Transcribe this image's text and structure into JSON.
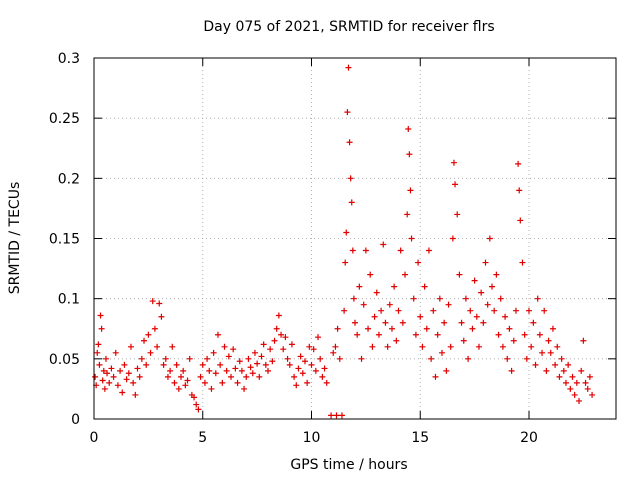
{
  "chart_data": {
    "type": "scatter",
    "title": "Day 075 of 2021, SRMTID for receiver flrs",
    "xlabel": "GPS time / hours",
    "ylabel": "SRMTID / TECUs",
    "xlim": [
      0,
      24
    ],
    "ylim": [
      0,
      0.3
    ],
    "x_ticks": [
      0,
      5,
      10,
      15,
      20
    ],
    "y_ticks": [
      0,
      0.05,
      0.1,
      0.15,
      0.2,
      0.25,
      0.3
    ],
    "grid": true,
    "marker": "+",
    "color": "#e00000",
    "series": [
      {
        "name": "",
        "points": [
          [
            0.05,
            0.035
          ],
          [
            0.1,
            0.028
          ],
          [
            0.15,
            0.055
          ],
          [
            0.2,
            0.062
          ],
          [
            0.25,
            0.045
          ],
          [
            0.3,
            0.086
          ],
          [
            0.35,
            0.075
          ],
          [
            0.4,
            0.032
          ],
          [
            0.45,
            0.04
          ],
          [
            0.5,
            0.025
          ],
          [
            0.55,
            0.05
          ],
          [
            0.6,
            0.038
          ],
          [
            0.7,
            0.03
          ],
          [
            0.8,
            0.042
          ],
          [
            0.9,
            0.035
          ],
          [
            1.0,
            0.055
          ],
          [
            1.1,
            0.028
          ],
          [
            1.2,
            0.04
          ],
          [
            1.3,
            0.022
          ],
          [
            1.4,
            0.045
          ],
          [
            1.5,
            0.033
          ],
          [
            1.6,
            0.038
          ],
          [
            1.7,
            0.06
          ],
          [
            1.8,
            0.03
          ],
          [
            1.9,
            0.02
          ],
          [
            2.0,
            0.042
          ],
          [
            2.1,
            0.035
          ],
          [
            2.2,
            0.05
          ],
          [
            2.3,
            0.065
          ],
          [
            2.4,
            0.045
          ],
          [
            2.5,
            0.07
          ],
          [
            2.6,
            0.055
          ],
          [
            2.7,
            0.098
          ],
          [
            2.8,
            0.075
          ],
          [
            2.9,
            0.06
          ],
          [
            3.0,
            0.096
          ],
          [
            3.1,
            0.085
          ],
          [
            3.2,
            0.045
          ],
          [
            3.3,
            0.05
          ],
          [
            3.4,
            0.035
          ],
          [
            3.5,
            0.04
          ],
          [
            3.6,
            0.06
          ],
          [
            3.7,
            0.03
          ],
          [
            3.8,
            0.045
          ],
          [
            3.9,
            0.025
          ],
          [
            4.0,
            0.035
          ],
          [
            4.1,
            0.04
          ],
          [
            4.2,
            0.028
          ],
          [
            4.3,
            0.032
          ],
          [
            4.4,
            0.05
          ],
          [
            4.5,
            0.02
          ],
          [
            4.6,
            0.018
          ],
          [
            4.7,
            0.012
          ],
          [
            4.8,
            0.008
          ],
          [
            4.9,
            0.035
          ],
          [
            5.0,
            0.045
          ],
          [
            5.1,
            0.03
          ],
          [
            5.2,
            0.05
          ],
          [
            5.3,
            0.04
          ],
          [
            5.4,
            0.025
          ],
          [
            5.5,
            0.055
          ],
          [
            5.6,
            0.038
          ],
          [
            5.7,
            0.07
          ],
          [
            5.8,
            0.045
          ],
          [
            5.9,
            0.03
          ],
          [
            6.0,
            0.06
          ],
          [
            6.1,
            0.04
          ],
          [
            6.2,
            0.052
          ],
          [
            6.3,
            0.035
          ],
          [
            6.4,
            0.058
          ],
          [
            6.5,
            0.042
          ],
          [
            6.6,
            0.03
          ],
          [
            6.7,
            0.048
          ],
          [
            6.8,
            0.04
          ],
          [
            6.9,
            0.025
          ],
          [
            7.0,
            0.035
          ],
          [
            7.1,
            0.05
          ],
          [
            7.2,
            0.043
          ],
          [
            7.3,
            0.038
          ],
          [
            7.4,
            0.055
          ],
          [
            7.5,
            0.046
          ],
          [
            7.6,
            0.035
          ],
          [
            7.7,
            0.052
          ],
          [
            7.8,
            0.062
          ],
          [
            7.9,
            0.045
          ],
          [
            8.0,
            0.04
          ],
          [
            8.1,
            0.058
          ],
          [
            8.2,
            0.048
          ],
          [
            8.3,
            0.065
          ],
          [
            8.4,
            0.075
          ],
          [
            8.5,
            0.086
          ],
          [
            8.6,
            0.07
          ],
          [
            8.7,
            0.058
          ],
          [
            8.8,
            0.068
          ],
          [
            8.9,
            0.05
          ],
          [
            9.0,
            0.045
          ],
          [
            9.1,
            0.062
          ],
          [
            9.2,
            0.035
          ],
          [
            9.3,
            0.028
          ],
          [
            9.4,
            0.042
          ],
          [
            9.5,
            0.052
          ],
          [
            9.6,
            0.038
          ],
          [
            9.7,
            0.048
          ],
          [
            9.8,
            0.03
          ],
          [
            9.9,
            0.06
          ],
          [
            10.0,
            0.045
          ],
          [
            10.1,
            0.058
          ],
          [
            10.2,
            0.04
          ],
          [
            10.3,
            0.068
          ],
          [
            10.4,
            0.05
          ],
          [
            10.5,
            0.035
          ],
          [
            10.6,
            0.042
          ],
          [
            10.7,
            0.03
          ],
          [
            10.9,
            0.003
          ],
          [
            11.0,
            0.055
          ],
          [
            11.1,
            0.06
          ],
          [
            11.15,
            0.003
          ],
          [
            11.2,
            0.075
          ],
          [
            11.3,
            0.05
          ],
          [
            11.4,
            0.003
          ],
          [
            11.5,
            0.09
          ],
          [
            11.55,
            0.13
          ],
          [
            11.6,
            0.155
          ],
          [
            11.65,
            0.255
          ],
          [
            11.7,
            0.292
          ],
          [
            11.75,
            0.23
          ],
          [
            11.8,
            0.2
          ],
          [
            11.85,
            0.18
          ],
          [
            11.9,
            0.14
          ],
          [
            11.95,
            0.1
          ],
          [
            12.0,
            0.08
          ],
          [
            12.1,
            0.07
          ],
          [
            12.2,
            0.11
          ],
          [
            12.3,
            0.05
          ],
          [
            12.4,
            0.095
          ],
          [
            12.5,
            0.14
          ],
          [
            12.6,
            0.075
          ],
          [
            12.7,
            0.12
          ],
          [
            12.8,
            0.06
          ],
          [
            12.9,
            0.085
          ],
          [
            13.0,
            0.105
          ],
          [
            13.1,
            0.07
          ],
          [
            13.2,
            0.09
          ],
          [
            13.3,
            0.145
          ],
          [
            13.4,
            0.08
          ],
          [
            13.5,
            0.06
          ],
          [
            13.6,
            0.095
          ],
          [
            13.7,
            0.075
          ],
          [
            13.8,
            0.11
          ],
          [
            13.9,
            0.065
          ],
          [
            14.0,
            0.09
          ],
          [
            14.1,
            0.14
          ],
          [
            14.2,
            0.08
          ],
          [
            14.3,
            0.12
          ],
          [
            14.4,
            0.17
          ],
          [
            14.45,
            0.241
          ],
          [
            14.5,
            0.22
          ],
          [
            14.55,
            0.19
          ],
          [
            14.6,
            0.15
          ],
          [
            14.7,
            0.1
          ],
          [
            14.8,
            0.07
          ],
          [
            14.9,
            0.13
          ],
          [
            15.0,
            0.085
          ],
          [
            15.1,
            0.06
          ],
          [
            15.2,
            0.11
          ],
          [
            15.3,
            0.075
          ],
          [
            15.4,
            0.14
          ],
          [
            15.5,
            0.05
          ],
          [
            15.6,
            0.09
          ],
          [
            15.7,
            0.035
          ],
          [
            15.8,
            0.07
          ],
          [
            15.9,
            0.1
          ],
          [
            16.0,
            0.055
          ],
          [
            16.1,
            0.08
          ],
          [
            16.2,
            0.04
          ],
          [
            16.3,
            0.095
          ],
          [
            16.4,
            0.06
          ],
          [
            16.5,
            0.15
          ],
          [
            16.55,
            0.213
          ],
          [
            16.6,
            0.195
          ],
          [
            16.7,
            0.17
          ],
          [
            16.8,
            0.12
          ],
          [
            16.9,
            0.08
          ],
          [
            17.0,
            0.065
          ],
          [
            17.1,
            0.1
          ],
          [
            17.2,
            0.05
          ],
          [
            17.3,
            0.09
          ],
          [
            17.4,
            0.075
          ],
          [
            17.5,
            0.115
          ],
          [
            17.6,
            0.085
          ],
          [
            17.7,
            0.06
          ],
          [
            17.8,
            0.105
          ],
          [
            17.9,
            0.08
          ],
          [
            18.0,
            0.13
          ],
          [
            18.1,
            0.095
          ],
          [
            18.2,
            0.15
          ],
          [
            18.3,
            0.11
          ],
          [
            18.4,
            0.09
          ],
          [
            18.5,
            0.12
          ],
          [
            18.6,
            0.07
          ],
          [
            18.7,
            0.1
          ],
          [
            18.8,
            0.06
          ],
          [
            18.9,
            0.085
          ],
          [
            19.0,
            0.05
          ],
          [
            19.1,
            0.075
          ],
          [
            19.2,
            0.04
          ],
          [
            19.3,
            0.065
          ],
          [
            19.4,
            0.09
          ],
          [
            19.5,
            0.212
          ],
          [
            19.55,
            0.19
          ],
          [
            19.6,
            0.165
          ],
          [
            19.7,
            0.13
          ],
          [
            19.8,
            0.07
          ],
          [
            19.9,
            0.05
          ],
          [
            20.0,
            0.09
          ],
          [
            20.1,
            0.06
          ],
          [
            20.2,
            0.08
          ],
          [
            20.3,
            0.045
          ],
          [
            20.4,
            0.1
          ],
          [
            20.5,
            0.07
          ],
          [
            20.6,
            0.055
          ],
          [
            20.7,
            0.09
          ],
          [
            20.8,
            0.04
          ],
          [
            20.9,
            0.065
          ],
          [
            21.0,
            0.055
          ],
          [
            21.1,
            0.075
          ],
          [
            21.2,
            0.045
          ],
          [
            21.3,
            0.06
          ],
          [
            21.4,
            0.035
          ],
          [
            21.5,
            0.05
          ],
          [
            21.6,
            0.04
          ],
          [
            21.7,
            0.03
          ],
          [
            21.8,
            0.045
          ],
          [
            21.9,
            0.025
          ],
          [
            22.0,
            0.035
          ],
          [
            22.1,
            0.02
          ],
          [
            22.2,
            0.03
          ],
          [
            22.3,
            0.015
          ],
          [
            22.4,
            0.04
          ],
          [
            22.5,
            0.065
          ],
          [
            22.6,
            0.03
          ],
          [
            22.7,
            0.025
          ],
          [
            22.8,
            0.035
          ],
          [
            22.9,
            0.02
          ]
        ]
      }
    ]
  }
}
